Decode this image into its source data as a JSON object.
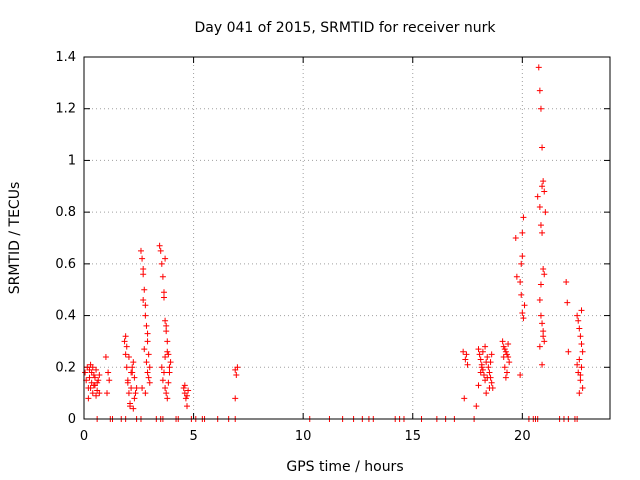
{
  "chart_data": {
    "type": "scatter",
    "title": "Day 041 of 2015, SRMTID for receiver nurk",
    "xlabel": "GPS time / hours",
    "ylabel": "SRMTID / TECUs",
    "xlim": [
      0,
      24
    ],
    "ylim": [
      0,
      1.4
    ],
    "xticks": [
      0,
      5,
      10,
      15,
      20
    ],
    "xtick_labels": [
      "0",
      "5",
      "10",
      "15",
      "20"
    ],
    "yticks": [
      0,
      0.2,
      0.4,
      0.6,
      0.8,
      1.0,
      1.2,
      1.4
    ],
    "ytick_labels": [
      "0",
      "0.2",
      "0.4",
      "0.6",
      "0.8",
      "1",
      "1.2",
      "1.4"
    ],
    "grid": true,
    "marker": "+",
    "series": [
      {
        "name": "SRMTID",
        "color": "#ff0000",
        "x": [
          0.05,
          0.1,
          0.15,
          0.2,
          0.25,
          0.3,
          0.35,
          0.4,
          0.45,
          0.5,
          0.55,
          0.6,
          0.65,
          0.7,
          0.2,
          0.3,
          0.4,
          0.5,
          0.6,
          0.7,
          0.35,
          0.45,
          0.25,
          0.55,
          1.0,
          1.1,
          1.05,
          1.15,
          1.85,
          1.9,
          1.95,
          2.0,
          2.05,
          2.1,
          2.15,
          2.2,
          2.25,
          2.3,
          1.9,
          2.0,
          2.1,
          2.2,
          2.3,
          2.35,
          2.4,
          1.95,
          2.05,
          2.15,
          2.25,
          2.6,
          2.65,
          2.7,
          2.75,
          2.8,
          2.85,
          2.9,
          2.95,
          3.0,
          2.7,
          2.8,
          2.9,
          2.75,
          2.85,
          2.95,
          2.65,
          2.8,
          2.9,
          3.0,
          2.7,
          3.45,
          3.5,
          3.55,
          3.6,
          3.65,
          3.7,
          3.75,
          3.8,
          3.85,
          3.9,
          3.95,
          3.6,
          3.7,
          3.75,
          3.8,
          3.55,
          3.65,
          3.85,
          3.7,
          3.8,
          3.9,
          3.75,
          3.65,
          3.7,
          4.55,
          4.6,
          4.65,
          4.7,
          4.75,
          4.6,
          4.7,
          6.9,
          6.95,
          7.0,
          6.9,
          17.3,
          17.45,
          17.5,
          17.4,
          17.35,
          17.9,
          18.0,
          18.05,
          18.1,
          18.15,
          18.2,
          18.25,
          18.3,
          18.35,
          18.4,
          18.45,
          18.5,
          18.55,
          18.6,
          18.65,
          18.0,
          18.1,
          18.2,
          18.3,
          18.4,
          18.5,
          18.6,
          18.15,
          18.35,
          18.55,
          19.1,
          19.15,
          19.2,
          19.25,
          19.3,
          19.35,
          19.4,
          19.2,
          19.3,
          19.25,
          19.15,
          19.35,
          19.7,
          19.75,
          19.9,
          19.95,
          20.0,
          20.05,
          20.1,
          19.95,
          20.0,
          20.05,
          19.9,
          20.0,
          20.7,
          20.75,
          20.8,
          20.85,
          20.9,
          20.95,
          21.0,
          21.05,
          20.85,
          20.9,
          20.95,
          21.0,
          20.8,
          20.85,
          20.9,
          20.95,
          21.0,
          20.8,
          20.9,
          20.95,
          20.85,
          20.8,
          20.9,
          22.0,
          22.05,
          22.1,
          22.5,
          22.55,
          22.6,
          22.65,
          22.7,
          22.75,
          22.6,
          22.7,
          22.55,
          22.65,
          22.75,
          22.6,
          22.7,
          22.5,
          22.65,
          0.6,
          1.2,
          1.3,
          1.7,
          1.9,
          2.4,
          2.6,
          3.3,
          3.5,
          3.6,
          4.2,
          4.3,
          4.9,
          5.1,
          5.4,
          5.5,
          6.1,
          6.6,
          6.9,
          10.3,
          11.2,
          11.8,
          12.3,
          12.7,
          13.0,
          13.2,
          14.2,
          14.4,
          14.6,
          15.4,
          16.1,
          16.5,
          16.9,
          17.8,
          20.3,
          20.5,
          20.6,
          20.7,
          21.7,
          21.9,
          22.1,
          22.4,
          22.5
        ],
        "y": [
          0.18,
          0.15,
          0.2,
          0.12,
          0.16,
          0.21,
          0.14,
          0.1,
          0.17,
          0.13,
          0.19,
          0.11,
          0.15,
          0.17,
          0.08,
          0.12,
          0.2,
          0.16,
          0.14,
          0.1,
          0.18,
          0.13,
          0.19,
          0.09,
          0.24,
          0.18,
          0.1,
          0.15,
          0.3,
          0.25,
          0.2,
          0.15,
          0.1,
          0.05,
          0.12,
          0.18,
          0.22,
          0.08,
          0.32,
          0.14,
          0.06,
          0.2,
          0.16,
          0.1,
          0.12,
          0.28,
          0.24,
          0.18,
          0.04,
          0.65,
          0.62,
          0.56,
          0.5,
          0.44,
          0.36,
          0.3,
          0.25,
          0.2,
          0.46,
          0.4,
          0.33,
          0.27,
          0.22,
          0.16,
          0.12,
          0.1,
          0.18,
          0.14,
          0.58,
          0.67,
          0.65,
          0.6,
          0.55,
          0.49,
          0.38,
          0.34,
          0.3,
          0.25,
          0.2,
          0.22,
          0.15,
          0.12,
          0.1,
          0.08,
          0.2,
          0.18,
          0.14,
          0.24,
          0.26,
          0.18,
          0.36,
          0.47,
          0.62,
          0.12,
          0.1,
          0.08,
          0.05,
          0.11,
          0.13,
          0.09,
          0.19,
          0.17,
          0.2,
          0.08,
          0.26,
          0.25,
          0.21,
          0.23,
          0.08,
          0.05,
          0.27,
          0.25,
          0.23,
          0.21,
          0.19,
          0.17,
          0.15,
          0.22,
          0.24,
          0.2,
          0.18,
          0.16,
          0.14,
          0.12,
          0.13,
          0.18,
          0.26,
          0.28,
          0.16,
          0.12,
          0.25,
          0.2,
          0.1,
          0.22,
          0.3,
          0.28,
          0.27,
          0.26,
          0.25,
          0.24,
          0.22,
          0.2,
          0.18,
          0.16,
          0.24,
          0.29,
          0.7,
          0.55,
          0.53,
          0.48,
          0.41,
          0.39,
          0.44,
          0.6,
          0.72,
          0.78,
          0.17,
          0.63,
          0.86,
          1.36,
          1.27,
          1.2,
          1.05,
          0.92,
          0.88,
          0.8,
          0.75,
          0.72,
          0.58,
          0.56,
          0.46,
          0.4,
          0.37,
          0.34,
          0.3,
          0.28,
          0.21,
          0.32,
          0.52,
          0.82,
          0.9,
          0.53,
          0.45,
          0.26,
          0.4,
          0.38,
          0.35,
          0.32,
          0.29,
          0.26,
          0.23,
          0.2,
          0.18,
          0.15,
          0.12,
          0.1,
          0.42,
          0.21,
          0.17,
          0,
          0,
          0,
          0,
          0,
          0,
          0,
          0,
          0,
          0,
          0,
          0,
          0,
          0,
          0,
          0,
          0,
          0,
          0,
          0,
          0,
          0,
          0,
          0,
          0,
          0,
          0,
          0,
          0,
          0,
          0,
          0,
          0,
          0,
          0,
          0,
          0,
          0,
          0,
          0,
          0,
          0,
          0
        ]
      }
    ]
  }
}
